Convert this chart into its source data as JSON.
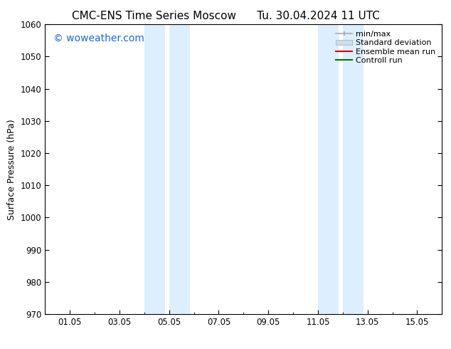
{
  "title_left": "CMC-ENS Time Series Moscow",
  "title_right": "Tu. 30.04.2024 11 UTC",
  "ylabel": "Surface Pressure (hPa)",
  "ylim": [
    970,
    1060
  ],
  "yticks": [
    970,
    980,
    990,
    1000,
    1010,
    1020,
    1030,
    1040,
    1050,
    1060
  ],
  "xtick_labels": [
    "01.05",
    "03.05",
    "05.05",
    "07.05",
    "09.05",
    "11.05",
    "13.05",
    "15.05"
  ],
  "xtick_positions": [
    1,
    3,
    5,
    7,
    9,
    11,
    13,
    15
  ],
  "xlim": [
    0,
    16
  ],
  "shaded_bands": [
    {
      "x_start": 4.0,
      "x_end": 4.83,
      "color": "#ddeeff"
    },
    {
      "x_start": 5.0,
      "x_end": 5.83,
      "color": "#ddeeff"
    },
    {
      "x_start": 11.0,
      "x_end": 11.83,
      "color": "#ddeeff"
    },
    {
      "x_start": 12.0,
      "x_end": 12.83,
      "color": "#ddeeff"
    }
  ],
  "watermark_text": "© woweather.com",
  "watermark_color": "#1a6adb",
  "watermark_fontsize": 10,
  "legend_items": [
    {
      "label": "min/max",
      "color": "#aaaaaa",
      "linewidth": 1.2,
      "linestyle": "-",
      "type": "errorbar"
    },
    {
      "label": "Standard deviation",
      "color": "#ccddef",
      "linewidth": 8,
      "linestyle": "-",
      "type": "patch"
    },
    {
      "label": "Ensemble mean run",
      "color": "#dd0000",
      "linewidth": 1.5,
      "linestyle": "-",
      "type": "line"
    },
    {
      "label": "Controll run",
      "color": "#007700",
      "linewidth": 1.5,
      "linestyle": "-",
      "type": "line"
    }
  ],
  "bg_color": "#ffffff",
  "title_fontsize": 11,
  "axis_fontsize": 9,
  "tick_fontsize": 8.5,
  "legend_fontsize": 8
}
